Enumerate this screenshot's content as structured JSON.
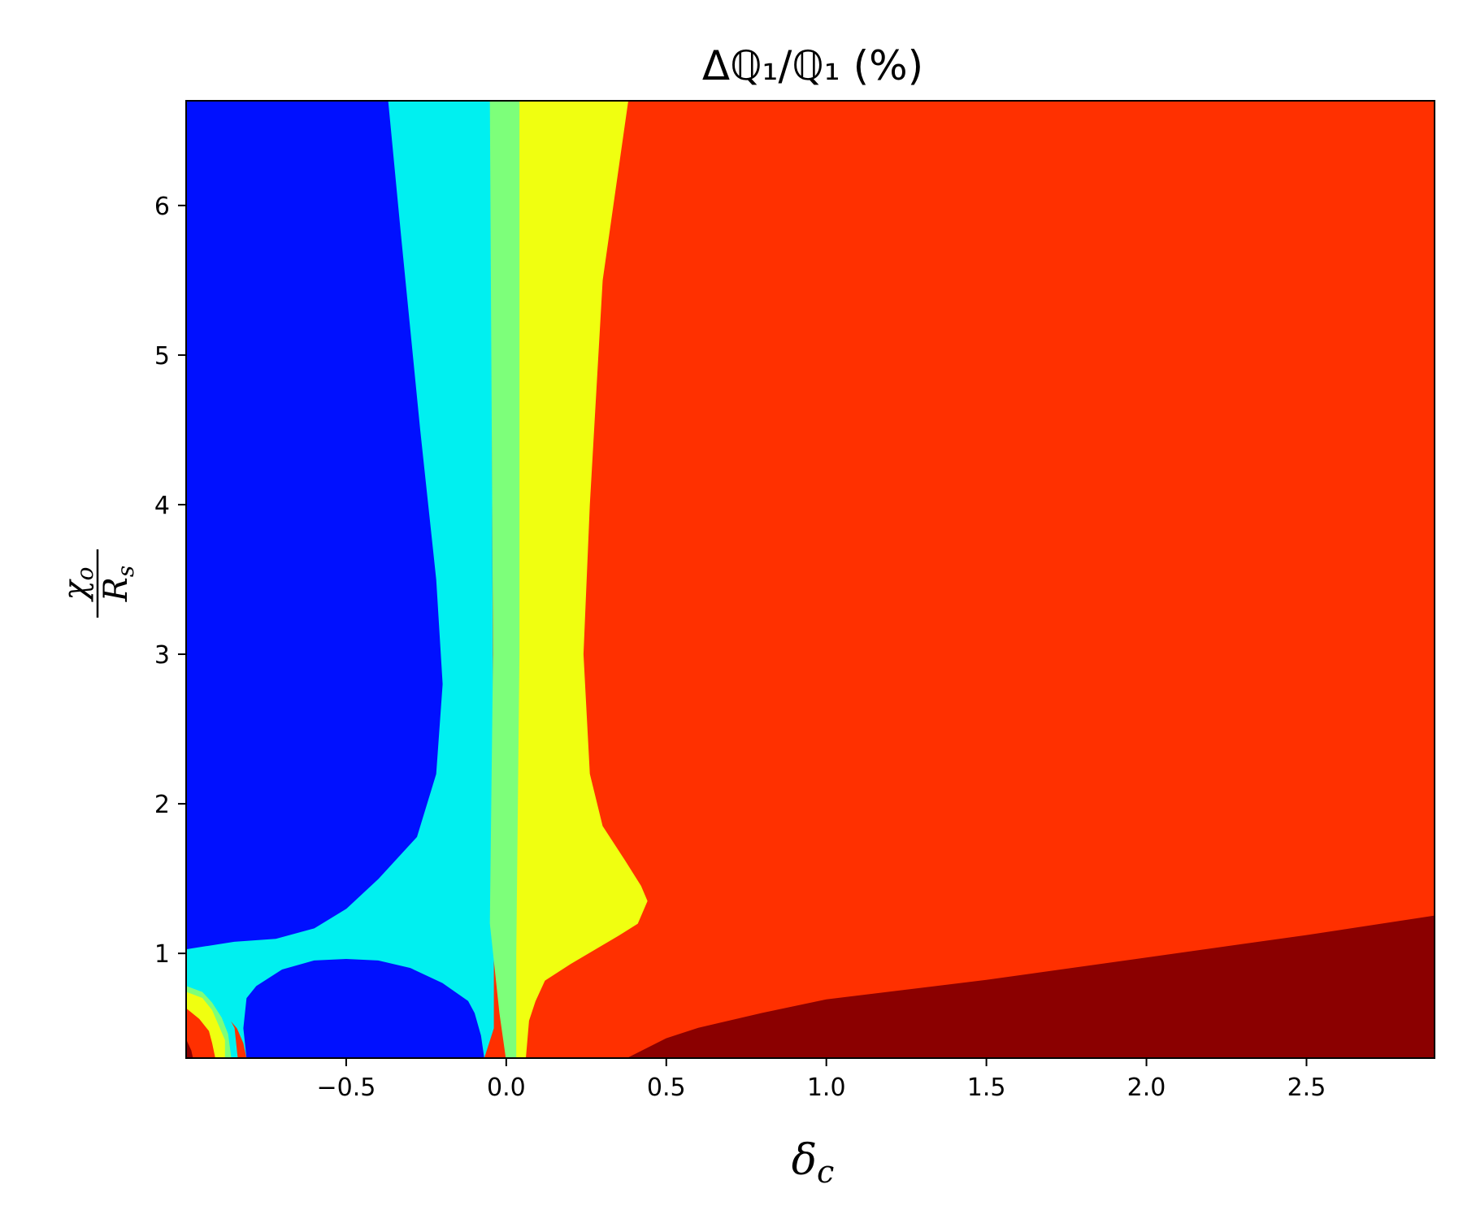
{
  "chart_data": {
    "type": "heatmap",
    "subtype": "filled-contour",
    "title": "Δℚ₁/ℚ₁ (%)",
    "xlabel": "δ_c",
    "xlabel_main": "δ",
    "xlabel_sub": "c",
    "ylabel": "χ_o / R_s",
    "ylabel_num": "χ",
    "ylabel_num_sub": "o",
    "ylabel_den": "R",
    "ylabel_den_sub": "s",
    "xlim": [
      -1.0,
      2.9
    ],
    "ylim": [
      0.3,
      6.7
    ],
    "x_ticks": [
      {
        "value": -0.5,
        "label": "−0.5"
      },
      {
        "value": 0.0,
        "label": "0.0"
      },
      {
        "value": 0.5,
        "label": "0.5"
      },
      {
        "value": 1.0,
        "label": "1.0"
      },
      {
        "value": 1.5,
        "label": "1.5"
      },
      {
        "value": 2.0,
        "label": "2.0"
      },
      {
        "value": 2.5,
        "label": "2.5"
      }
    ],
    "y_ticks": [
      {
        "value": 1,
        "label": "1"
      },
      {
        "value": 2,
        "label": "2"
      },
      {
        "value": 3,
        "label": "3"
      },
      {
        "value": 4,
        "label": "4"
      },
      {
        "value": 5,
        "label": "5"
      },
      {
        "value": 6,
        "label": "6"
      }
    ],
    "grid": false,
    "colormap": "jet",
    "colors": {
      "background_level": "#ff3000",
      "dark_red": "#8b0000",
      "blue": "#0010ff",
      "cyan": "#00f0f0",
      "green": "#7dff7a",
      "yellow": "#f0ff10",
      "axes": "#000000"
    },
    "regions": [
      {
        "name": "dark-red-lower-right",
        "color": "#8b0000",
        "polygon": [
          [
            0.38,
            0.3
          ],
          [
            0.5,
            0.43
          ],
          [
            0.6,
            0.5
          ],
          [
            0.8,
            0.6
          ],
          [
            1.0,
            0.69
          ],
          [
            1.5,
            0.82
          ],
          [
            2.0,
            0.97
          ],
          [
            2.5,
            1.12
          ],
          [
            2.9,
            1.25
          ],
          [
            2.9,
            0.3
          ]
        ]
      },
      {
        "name": "yellow-band",
        "color": "#f0ff10",
        "polygon": [
          [
            0.04,
            6.7
          ],
          [
            0.38,
            6.7
          ],
          [
            0.3,
            5.5
          ],
          [
            0.26,
            4.0
          ],
          [
            0.24,
            3.0
          ],
          [
            0.26,
            2.2
          ],
          [
            0.3,
            1.85
          ],
          [
            0.37,
            1.62
          ],
          [
            0.42,
            1.45
          ],
          [
            0.44,
            1.35
          ],
          [
            0.41,
            1.2
          ],
          [
            0.35,
            1.12
          ],
          [
            0.2,
            0.93
          ],
          [
            0.12,
            0.82
          ],
          [
            0.09,
            0.68
          ],
          [
            0.07,
            0.55
          ],
          [
            0.06,
            0.3
          ],
          [
            0.03,
            0.3
          ],
          [
            0.03,
            1.0
          ],
          [
            0.04,
            3.0
          ]
        ]
      },
      {
        "name": "cyan-band",
        "color": "#00f0f0",
        "polygon": [
          [
            -1.0,
            6.7
          ],
          [
            -0.37,
            6.7
          ],
          [
            -0.33,
            5.8
          ],
          [
            -0.27,
            4.5
          ],
          [
            -0.22,
            3.5
          ],
          [
            -0.2,
            2.8
          ],
          [
            -0.22,
            2.2
          ],
          [
            -0.28,
            1.78
          ],
          [
            -0.4,
            1.5
          ],
          [
            -0.5,
            1.3
          ],
          [
            -0.6,
            1.17
          ],
          [
            -0.72,
            1.1
          ],
          [
            -0.85,
            1.08
          ],
          [
            -1.0,
            1.05
          ],
          [
            -1.0,
            0.8
          ],
          [
            -0.96,
            0.78
          ],
          [
            -0.92,
            0.72
          ],
          [
            -0.88,
            0.6
          ],
          [
            -0.84,
            0.5
          ],
          [
            -0.82,
            0.4
          ],
          [
            -0.81,
            0.3
          ],
          [
            -0.07,
            0.3
          ],
          [
            -0.04,
            0.5
          ],
          [
            -0.04,
            1.0
          ],
          [
            -0.05,
            6.7
          ]
        ]
      },
      {
        "name": "blue-upper-left",
        "color": "#0010ff",
        "polygon": [
          [
            -1.0,
            6.7
          ],
          [
            -0.37,
            6.7
          ],
          [
            -0.33,
            5.8
          ],
          [
            -0.27,
            4.5
          ],
          [
            -0.22,
            3.5
          ],
          [
            -0.2,
            2.8
          ],
          [
            -0.22,
            2.2
          ],
          [
            -0.28,
            1.78
          ],
          [
            -0.4,
            1.5
          ],
          [
            -0.5,
            1.3
          ],
          [
            -0.6,
            1.17
          ],
          [
            -0.72,
            1.1
          ],
          [
            -0.85,
            1.08
          ],
          [
            -1.0,
            1.03
          ]
        ]
      },
      {
        "name": "blue-lower-pocket",
        "color": "#0010ff",
        "polygon": [
          [
            -0.81,
            0.3
          ],
          [
            -0.82,
            0.5
          ],
          [
            -0.81,
            0.7
          ],
          [
            -0.78,
            0.78
          ],
          [
            -0.7,
            0.89
          ],
          [
            -0.6,
            0.95
          ],
          [
            -0.5,
            0.96
          ],
          [
            -0.4,
            0.95
          ],
          [
            -0.3,
            0.9
          ],
          [
            -0.2,
            0.8
          ],
          [
            -0.12,
            0.68
          ],
          [
            -0.1,
            0.6
          ],
          [
            -0.08,
            0.45
          ],
          [
            -0.07,
            0.3
          ]
        ]
      },
      {
        "name": "green-strip",
        "color": "#7dff7a",
        "polygon": [
          [
            -0.05,
            6.7
          ],
          [
            0.04,
            6.7
          ],
          [
            0.04,
            3.0
          ],
          [
            0.03,
            1.0
          ],
          [
            0.03,
            0.3
          ],
          [
            0.0,
            0.3
          ],
          [
            -0.02,
            0.6
          ],
          [
            -0.05,
            1.2
          ],
          [
            -0.04,
            3.0
          ]
        ]
      },
      {
        "name": "edge-cyan-sliver",
        "color": "#00f0f0",
        "polygon": [
          [
            -1.0,
            0.82
          ],
          [
            -0.96,
            0.79
          ],
          [
            -0.92,
            0.73
          ],
          [
            -0.88,
            0.62
          ],
          [
            -0.85,
            0.5
          ],
          [
            -0.84,
            0.3
          ],
          [
            -0.86,
            0.3
          ],
          [
            -0.88,
            0.48
          ],
          [
            -0.91,
            0.6
          ],
          [
            -0.95,
            0.7
          ],
          [
            -1.0,
            0.75
          ]
        ]
      },
      {
        "name": "edge-green-sliver",
        "color": "#7dff7a",
        "polygon": [
          [
            -1.0,
            0.78
          ],
          [
            -0.95,
            0.74
          ],
          [
            -0.92,
            0.67
          ],
          [
            -0.89,
            0.57
          ],
          [
            -0.87,
            0.46
          ],
          [
            -0.86,
            0.3
          ],
          [
            -0.88,
            0.3
          ],
          [
            -0.89,
            0.44
          ],
          [
            -0.91,
            0.54
          ],
          [
            -0.95,
            0.65
          ],
          [
            -1.0,
            0.72
          ]
        ]
      },
      {
        "name": "edge-yellow-sliver",
        "color": "#f0ff10",
        "polygon": [
          [
            -1.0,
            0.74
          ],
          [
            -0.95,
            0.7
          ],
          [
            -0.92,
            0.62
          ],
          [
            -0.9,
            0.52
          ],
          [
            -0.88,
            0.42
          ],
          [
            -0.88,
            0.3
          ],
          [
            -0.91,
            0.3
          ],
          [
            -0.92,
            0.4
          ],
          [
            -0.93,
            0.48
          ],
          [
            -0.96,
            0.56
          ],
          [
            -1.0,
            0.63
          ]
        ]
      },
      {
        "name": "edge-red-corner",
        "color": "#ff3000",
        "polygon": [
          [
            -1.0,
            0.63
          ],
          [
            -0.96,
            0.56
          ],
          [
            -0.93,
            0.48
          ],
          [
            -0.92,
            0.4
          ],
          [
            -0.91,
            0.3
          ],
          [
            -1.0,
            0.3
          ]
        ]
      },
      {
        "name": "edge-dark-red-corner",
        "color": "#8b0000",
        "polygon": [
          [
            -1.0,
            0.42
          ],
          [
            -0.985,
            0.35
          ],
          [
            -0.98,
            0.3
          ],
          [
            -1.0,
            0.3
          ]
        ]
      }
    ]
  }
}
